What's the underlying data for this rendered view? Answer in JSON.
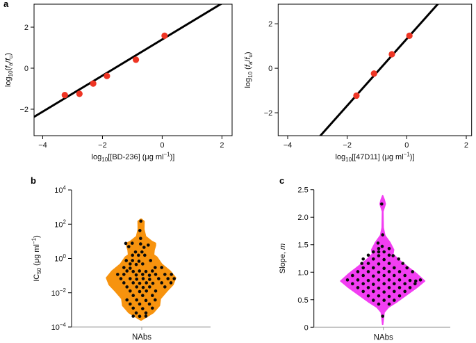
{
  "figure": {
    "panels": {
      "a": "a",
      "b": "b",
      "c": "c"
    }
  },
  "colors": {
    "point_red": "#ee3524",
    "fit_line": "#000000",
    "violin_orange": "#f7930e",
    "violin_magenta": "#f23ef2",
    "dot_black": "#0a0a0a",
    "axis_black": "#000000",
    "axis_gray": "#9b9b9b"
  },
  "chart_data": [
    {
      "type": "scatter",
      "panel": "a-left",
      "xlabel_segments": [
        {
          "t": "log"
        },
        {
          "t": "10",
          "sub": true
        },
        {
          "t": "[[BD-236] (μg ml"
        },
        {
          "t": "−1",
          "sup": true
        },
        {
          "t": ")]"
        }
      ],
      "ylabel_segments": [
        {
          "t": "log"
        },
        {
          "t": "10",
          "sub": true
        },
        {
          "t": "("
        },
        {
          "t": "f",
          "italic": true
        },
        {
          "t": "a",
          "sub": true
        },
        {
          "t": "/"
        },
        {
          "t": "f",
          "italic": true
        },
        {
          "t": "u",
          "sub": true
        },
        {
          "t": ")"
        }
      ],
      "x_ticks": [
        -4,
        -2,
        0,
        2
      ],
      "x_tick_labels": [
        "−4",
        "−2",
        "0",
        "2"
      ],
      "y_ticks": [
        -2,
        0,
        2
      ],
      "y_tick_labels": [
        "−2",
        "0",
        "2"
      ],
      "xlim": [
        -4.29,
        2.34
      ],
      "ylim": [
        -3.29,
        3.12
      ],
      "points": [
        [
          -3.26,
          -1.31
        ],
        [
          -2.77,
          -1.25
        ],
        [
          -2.31,
          -0.75
        ],
        [
          -1.85,
          -0.38
        ],
        [
          -0.88,
          0.41
        ],
        [
          0.08,
          1.58
        ]
      ],
      "fit_line": {
        "slope": 0.88,
        "intercept": 1.4
      },
      "grid": false
    },
    {
      "type": "scatter",
      "panel": "a-right",
      "xlabel_segments": [
        {
          "t": "log"
        },
        {
          "t": "10",
          "sub": true
        },
        {
          "t": "[[47D11] (μg ml"
        },
        {
          "t": "−1",
          "sup": true
        },
        {
          "t": ")]"
        }
      ],
      "ylabel_segments": [
        {
          "t": "log"
        },
        {
          "t": "10",
          "sub": true
        },
        {
          "t": " ("
        },
        {
          "t": "f",
          "italic": true
        },
        {
          "t": "a",
          "sub": true
        },
        {
          "t": "/"
        },
        {
          "t": "f",
          "italic": true
        },
        {
          "t": "u",
          "sub": true
        },
        {
          "t": ")"
        }
      ],
      "x_ticks": [
        -4,
        -2,
        0,
        2
      ],
      "x_tick_labels": [
        "−4",
        "−2",
        "0",
        "2"
      ],
      "y_ticks": [
        -2,
        0,
        2
      ],
      "y_tick_labels": [
        "−2",
        "0",
        "2"
      ],
      "xlim": [
        -4.32,
        2.18
      ],
      "ylim": [
        -3.03,
        2.88
      ],
      "points": [
        [
          -1.69,
          -1.23
        ],
        [
          -1.1,
          -0.24
        ],
        [
          -0.5,
          0.63
        ],
        [
          0.09,
          1.46
        ]
      ],
      "fit_line": {
        "slope": 1.5,
        "intercept": 1.32
      },
      "grid": false
    },
    {
      "type": "violin",
      "panel": "b",
      "ylabel_segments": [
        {
          "t": "IC"
        },
        {
          "t": "50",
          "sub": true
        },
        {
          "t": " (μg ml"
        },
        {
          "t": "−1",
          "sup": true
        },
        {
          "t": ")"
        }
      ],
      "y_scale": "log10",
      "y_tick_exponents": [
        4,
        2,
        0,
        -2,
        -4
      ],
      "ylim_exponents": [
        -4,
        4
      ],
      "x_category": "NAbs",
      "outline_value_halfwidth": [
        [
          2.3,
          0.6
        ],
        [
          2.17,
          4.5
        ],
        [
          1.7,
          4.3
        ],
        [
          1.29,
          6.7
        ],
        [
          1.02,
          15
        ],
        [
          0.89,
          21
        ],
        [
          0.76,
          21
        ],
        [
          0.49,
          19
        ],
        [
          0.22,
          18.3
        ],
        [
          0.08,
          23
        ],
        [
          -0.33,
          30
        ],
        [
          -0.73,
          42
        ],
        [
          -1.13,
          50
        ],
        [
          -1.54,
          46
        ],
        [
          -1.94,
          36.7
        ],
        [
          -2.35,
          28
        ],
        [
          -2.75,
          26.7
        ],
        [
          -3.16,
          18
        ],
        [
          -3.49,
          5
        ],
        [
          -3.6,
          0.6
        ]
      ],
      "points_offset_value": [
        [
          -0.3,
          2.18
        ],
        [
          -1.7,
          1.63
        ],
        [
          -0.7,
          1.17
        ],
        [
          -22,
          0.88
        ],
        [
          -12.7,
          0.89
        ],
        [
          -0.7,
          0.85
        ],
        [
          10.3,
          0.78
        ],
        [
          -17.7,
          0.69
        ],
        [
          4.3,
          0.65
        ],
        [
          -8,
          0.38
        ],
        [
          1.3,
          0.38
        ],
        [
          -12.3,
          0.19
        ],
        [
          -3.7,
          0.19
        ],
        [
          5.3,
          0.19
        ],
        [
          -21.3,
          -0.12
        ],
        [
          -12.3,
          -0.12
        ],
        [
          -3,
          -0.16
        ],
        [
          13.7,
          -0.12
        ],
        [
          -15.7,
          -0.32
        ],
        [
          -7,
          -0.35
        ],
        [
          2.3,
          -0.32
        ],
        [
          -24.7,
          -0.53
        ],
        [
          -15.7,
          -0.57
        ],
        [
          20.3,
          -0.53
        ],
        [
          29.7,
          -0.53
        ],
        [
          -20.3,
          -0.73
        ],
        [
          -11.3,
          -0.76
        ],
        [
          -2.3,
          -0.73
        ],
        [
          7,
          -0.76
        ],
        [
          16.3,
          -0.73
        ],
        [
          -33.7,
          -0.93
        ],
        [
          -24.7,
          -0.93
        ],
        [
          -7,
          -0.96
        ],
        [
          2.3,
          -0.93
        ],
        [
          12,
          -0.98
        ],
        [
          21,
          -0.93
        ],
        [
          34.3,
          -0.93
        ],
        [
          43.7,
          -0.93
        ],
        [
          -29,
          -1.18
        ],
        [
          -15.7,
          -1.18
        ],
        [
          -6.3,
          -1.21
        ],
        [
          3,
          -1.18
        ],
        [
          12.3,
          -1.22
        ],
        [
          25.3,
          -1.18
        ],
        [
          38.7,
          -1.18
        ],
        [
          47.7,
          -1.18
        ],
        [
          -24.7,
          -1.42
        ],
        [
          -11.3,
          -1.42
        ],
        [
          -2,
          -1.45
        ],
        [
          7.7,
          -1.42
        ],
        [
          17,
          -1.45
        ],
        [
          29.7,
          -1.42
        ],
        [
          43,
          -1.42
        ],
        [
          -20.3,
          -1.66
        ],
        [
          -6.3,
          -1.66
        ],
        [
          3,
          -1.69
        ],
        [
          12.3,
          -1.66
        ],
        [
          34.3,
          -1.66
        ],
        [
          -15.7,
          -1.9
        ],
        [
          -2,
          -1.93
        ],
        [
          7.7,
          -1.9
        ],
        [
          21,
          -1.9
        ],
        [
          -11.3,
          -2.16
        ],
        [
          2.3,
          -2.16
        ],
        [
          16.3,
          -2.16
        ],
        [
          -20.3,
          -2.42
        ],
        [
          -6.3,
          -2.42
        ],
        [
          7,
          -2.45
        ],
        [
          20.3,
          -2.42
        ],
        [
          -15.7,
          -2.66
        ],
        [
          -2,
          -2.66
        ],
        [
          12,
          -2.66
        ],
        [
          -11.3,
          -2.9
        ],
        [
          2.3,
          -2.93
        ],
        [
          16.3,
          -2.9
        ],
        [
          -7,
          -3.18
        ],
        [
          7,
          -3.18
        ],
        [
          -11.3,
          -3.37
        ],
        [
          -2,
          -3.38
        ],
        [
          7,
          -3.37
        ]
      ]
    },
    {
      "type": "violin",
      "panel": "c",
      "ylabel_segments": [
        {
          "t": "Slope, "
        },
        {
          "t": "m",
          "italic": true
        }
      ],
      "y_scale": "linear",
      "y_ticks": [
        0,
        0.5,
        1.0,
        1.5,
        2.0,
        2.5
      ],
      "y_tick_labels": [
        "0",
        "0.5",
        "1.0",
        "1.5",
        "2.0",
        "2.5"
      ],
      "ylim": [
        0,
        2.5
      ],
      "x_category": "NAbs",
      "outline_value_halfwidth": [
        [
          2.09,
          0.6
        ],
        [
          1.95,
          0.8
        ],
        [
          1.81,
          1
        ],
        [
          1.67,
          3.3
        ],
        [
          1.54,
          10.7
        ],
        [
          1.41,
          16
        ],
        [
          1.33,
          15
        ],
        [
          1.22,
          24
        ],
        [
          1.1,
          36
        ],
        [
          0.97,
          49.3
        ],
        [
          0.84,
          60.7
        ],
        [
          0.72,
          49.3
        ],
        [
          0.59,
          35
        ],
        [
          0.46,
          20.7
        ],
        [
          0.36,
          8.3
        ],
        [
          0.27,
          2.3
        ],
        [
          0.13,
          1
        ],
        [
          0.05,
          0.3
        ]
      ],
      "outline_top_spike": [
        [
          2.4,
          0.2
        ],
        [
          2.32,
          2.7
        ],
        [
          2.24,
          4.3
        ],
        [
          2.15,
          2
        ],
        [
          2.09,
          0.5
        ]
      ],
      "points_offset_value": [
        [
          -1.4,
          2.24
        ],
        [
          0,
          1.68
        ],
        [
          -6.7,
          1.53
        ],
        [
          -0.7,
          1.47
        ],
        [
          -5.7,
          1.43
        ],
        [
          9.3,
          1.43
        ],
        [
          -13.4,
          1.37
        ],
        [
          -5.7,
          1.37
        ],
        [
          2,
          1.37
        ],
        [
          -20.7,
          1.31
        ],
        [
          -5.7,
          1.3
        ],
        [
          9.3,
          1.31
        ],
        [
          15,
          1.3
        ],
        [
          -28,
          1.24
        ],
        [
          -13.4,
          1.24
        ],
        [
          2,
          1.23
        ],
        [
          23,
          1.24
        ],
        [
          -30,
          1.16
        ],
        [
          -20.7,
          1.16
        ],
        [
          -5.7,
          1.15
        ],
        [
          9.3,
          1.16
        ],
        [
          29,
          1.16
        ],
        [
          -28,
          1.08
        ],
        [
          -13.4,
          1.08
        ],
        [
          2,
          1.07
        ],
        [
          16.6,
          1.08
        ],
        [
          35,
          1.08
        ],
        [
          -35.7,
          1.01
        ],
        [
          -20.7,
          1.01
        ],
        [
          -5.7,
          1.0
        ],
        [
          9.3,
          1.01
        ],
        [
          24.3,
          1.01
        ],
        [
          43,
          1.01
        ],
        [
          -43.4,
          0.94
        ],
        [
          -28,
          0.94
        ],
        [
          -13.4,
          0.93
        ],
        [
          2,
          0.94
        ],
        [
          16.6,
          0.94
        ],
        [
          32,
          0.94
        ],
        [
          -50.7,
          0.86
        ],
        [
          -35.7,
          0.86
        ],
        [
          -20.7,
          0.85
        ],
        [
          -5.7,
          0.86
        ],
        [
          9.3,
          0.86
        ],
        [
          24.3,
          0.86
        ],
        [
          39.3,
          0.85
        ],
        [
          54.3,
          0.86
        ],
        [
          47.6,
          0.84
        ],
        [
          -43.4,
          0.79
        ],
        [
          -28,
          0.79
        ],
        [
          -13.4,
          0.78
        ],
        [
          2,
          0.79
        ],
        [
          16.6,
          0.79
        ],
        [
          32,
          0.79
        ],
        [
          46.6,
          0.79
        ],
        [
          -35.7,
          0.72
        ],
        [
          -20.7,
          0.72
        ],
        [
          -5.7,
          0.71
        ],
        [
          9.3,
          0.72
        ],
        [
          24.3,
          0.72
        ],
        [
          39.3,
          0.72
        ],
        [
          -28,
          0.65
        ],
        [
          -13.4,
          0.65
        ],
        [
          2,
          0.64
        ],
        [
          16.6,
          0.65
        ],
        [
          32,
          0.65
        ],
        [
          -20.7,
          0.57
        ],
        [
          -5.7,
          0.57
        ],
        [
          9.3,
          0.56
        ],
        [
          24.3,
          0.57
        ],
        [
          -13.4,
          0.49
        ],
        [
          2,
          0.49
        ],
        [
          16.6,
          0.49
        ],
        [
          -5.7,
          0.42
        ],
        [
          9.3,
          0.42
        ],
        [
          0,
          0.2
        ]
      ]
    }
  ]
}
